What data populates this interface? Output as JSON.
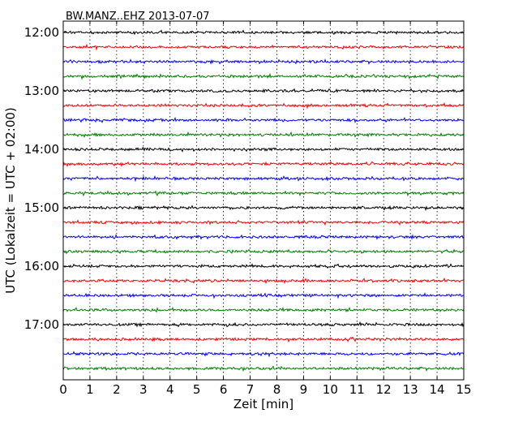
{
  "chart_data": {
    "type": "line",
    "title": "BW.MANZ..EHZ 2013-07-07",
    "xlabel": "Zeit  [min]",
    "ylabel": "UTC (Lokalzeit = UTC + 02:00)",
    "xlim": [
      0,
      15
    ],
    "x_ticks": [
      "0",
      "1",
      "2",
      "3",
      "4",
      "5",
      "6",
      "7",
      "8",
      "9",
      "10",
      "11",
      "12",
      "13",
      "14",
      "15"
    ],
    "y_ticks": [
      "12:00",
      "13:00",
      "14:00",
      "15:00",
      "16:00",
      "17:00"
    ],
    "grid": "vertical dotted lines at each minute",
    "trace_interval_min": 15,
    "trace_colors": [
      "#000000",
      "#ff0000",
      "#0000ff",
      "#008000"
    ],
    "series": [
      {
        "start": "12:00",
        "color": "#000000"
      },
      {
        "start": "12:15",
        "color": "#ff0000"
      },
      {
        "start": "12:30",
        "color": "#0000ff"
      },
      {
        "start": "12:45",
        "color": "#008000"
      },
      {
        "start": "13:00",
        "color": "#000000"
      },
      {
        "start": "13:15",
        "color": "#ff0000"
      },
      {
        "start": "13:30",
        "color": "#0000ff"
      },
      {
        "start": "13:45",
        "color": "#008000"
      },
      {
        "start": "14:00",
        "color": "#000000"
      },
      {
        "start": "14:15",
        "color": "#ff0000"
      },
      {
        "start": "14:30",
        "color": "#0000ff"
      },
      {
        "start": "14:45",
        "color": "#008000"
      },
      {
        "start": "15:00",
        "color": "#000000"
      },
      {
        "start": "15:15",
        "color": "#ff0000"
      },
      {
        "start": "15:30",
        "color": "#0000ff"
      },
      {
        "start": "15:45",
        "color": "#008000"
      },
      {
        "start": "16:00",
        "color": "#000000"
      },
      {
        "start": "16:15",
        "color": "#ff0000"
      },
      {
        "start": "16:30",
        "color": "#0000ff"
      },
      {
        "start": "16:45",
        "color": "#008000"
      },
      {
        "start": "17:00",
        "color": "#000000"
      },
      {
        "start": "17:15",
        "color": "#ff0000"
      },
      {
        "start": "17:30",
        "color": "#0000ff"
      },
      {
        "start": "17:45",
        "color": "#008000"
      }
    ]
  }
}
